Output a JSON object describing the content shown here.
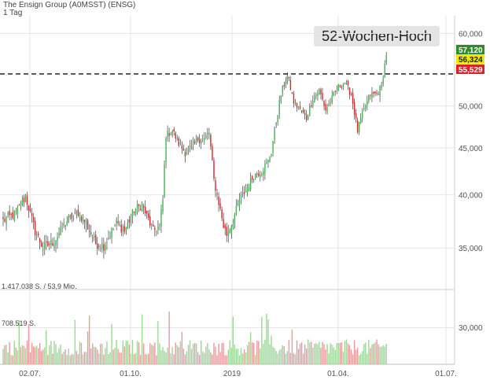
{
  "header": {
    "title": "The Ensign Group (A0MSST) (ENSG)",
    "interval": "1 Tag"
  },
  "annotation": "52-Wochen-Hoch",
  "colors": {
    "up": "#3fb34f",
    "down": "#d9232a",
    "vol_up": "#9fd59a",
    "vol_down": "#e89a9c",
    "grid": "#e6e6e6",
    "dash": "#111111",
    "badge_close": "#2e8b2e",
    "badge_mid": "#f2e600",
    "badge_low": "#d9232a"
  },
  "chart_data": {
    "type": "candlestick",
    "title": "The Ensign Group (A0MSST) (ENSG)",
    "interval": "1 Tag",
    "y_ticks": [
      "60,000",
      "50,000",
      "45,000",
      "40,000",
      "35,000"
    ],
    "y_tick_values": [
      60,
      50,
      45,
      40,
      35
    ],
    "x_ticks": [
      "02.07.",
      "01.10.",
      "2019",
      "01.04.",
      "01.07."
    ],
    "ylim": [
      33,
      61.5
    ],
    "log_scale": true,
    "grid": true,
    "reference_line": {
      "value": 54.2,
      "style": "dashed"
    },
    "price_badges": [
      "57,120",
      "56,324",
      "55,529"
    ],
    "price_badge_values": [
      57.12,
      56.324,
      55.529
    ],
    "anchors": [
      [
        0,
        37.5
      ],
      [
        8,
        38.2
      ],
      [
        14,
        39.8
      ],
      [
        20,
        36.5
      ],
      [
        25,
        35.0
      ],
      [
        32,
        35.6
      ],
      [
        40,
        37.5
      ],
      [
        47,
        38.3
      ],
      [
        52,
        37.2
      ],
      [
        58,
        35.4
      ],
      [
        63,
        35.2
      ],
      [
        71,
        37.3
      ],
      [
        76,
        36.5
      ],
      [
        82,
        38.5
      ],
      [
        87,
        39.0
      ],
      [
        94,
        36.5
      ],
      [
        98,
        37.0
      ],
      [
        100,
        39.5
      ],
      [
        102,
        46.5
      ],
      [
        106,
        47.0
      ],
      [
        110,
        45.5
      ],
      [
        114,
        44.5
      ],
      [
        118,
        45.0
      ],
      [
        122,
        46.0
      ],
      [
        126,
        46.0
      ],
      [
        129,
        46.8
      ],
      [
        132,
        41.5
      ],
      [
        138,
        37.0
      ],
      [
        140,
        36.2
      ],
      [
        144,
        37.5
      ],
      [
        148,
        39.5
      ],
      [
        152,
        40.5
      ],
      [
        157,
        42.0
      ],
      [
        162,
        42.5
      ],
      [
        166,
        43.5
      ],
      [
        168,
        44.6
      ],
      [
        170,
        47.0
      ],
      [
        174,
        51.5
      ],
      [
        178,
        54.0
      ],
      [
        182,
        50.5
      ],
      [
        186,
        49.5
      ],
      [
        190,
        48.5
      ],
      [
        194,
        51.0
      ],
      [
        198,
        52.0
      ],
      [
        202,
        49.5
      ],
      [
        206,
        51.0
      ],
      [
        210,
        52.5
      ],
      [
        214,
        53.0
      ],
      [
        218,
        51.5
      ],
      [
        222,
        47.0
      ],
      [
        226,
        49.5
      ],
      [
        230,
        51.5
      ],
      [
        234,
        51.5
      ],
      [
        237,
        52.5
      ],
      [
        240,
        57.0
      ]
    ],
    "volume_ticks": [
      "1.417.038 S. / 53,9 Mio.",
      "708.519 S."
    ],
    "volume_tick_values": [
      1417038,
      708519
    ]
  }
}
